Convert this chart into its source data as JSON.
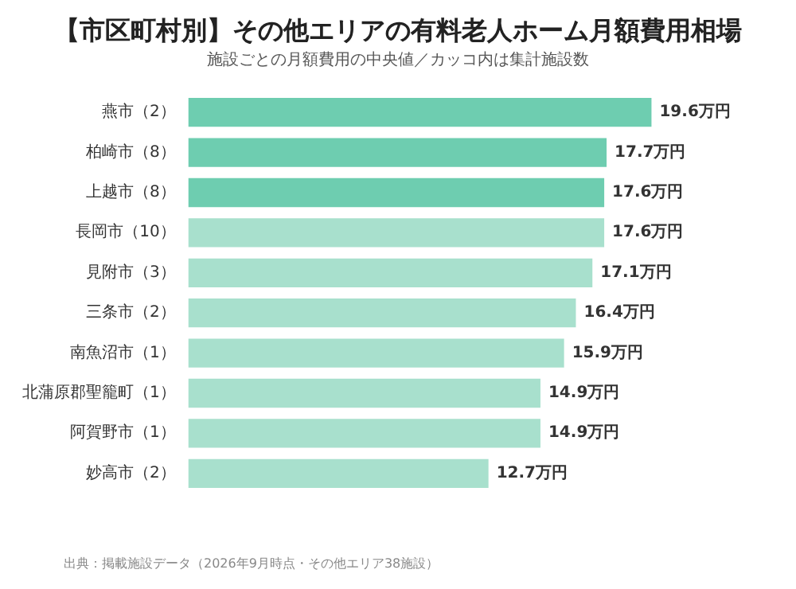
{
  "chart_data": {
    "type": "bar",
    "orientation": "horizontal",
    "title": "【市区町村別】その他エリアの有料老人ホーム月額費用相場",
    "subtitle": "施設ごとの月額費用の中央値／カッコ内は集計施設数",
    "categories": [
      "燕市（2）",
      "柏崎市（8）",
      "上越市（8）",
      "長岡市（10）",
      "見附市（3）",
      "三条市（2）",
      "南魚沼市（1）",
      "北蒲原郡聖籠町（1）",
      "阿賀野市（1）",
      "妙高市（2）"
    ],
    "values": [
      19.6,
      17.7,
      17.6,
      17.6,
      17.1,
      16.4,
      15.9,
      14.9,
      14.9,
      12.7
    ],
    "value_labels": [
      "19.6万円",
      "17.7万円",
      "17.6万円",
      "17.6万円",
      "17.1万円",
      "16.4万円",
      "15.9万円",
      "14.9万円",
      "14.9万円",
      "12.7万円"
    ],
    "colors": [
      "#6ecdb0",
      "#6ecdb0",
      "#6ecdb0",
      "#a8e0cd",
      "#a8e0cd",
      "#a8e0cd",
      "#a8e0cd",
      "#a8e0cd",
      "#a8e0cd",
      "#a8e0cd"
    ],
    "annotations": [
      "出典：掲載施設データ（2026年9月時点・その他エリア38施設）"
    ]
  }
}
